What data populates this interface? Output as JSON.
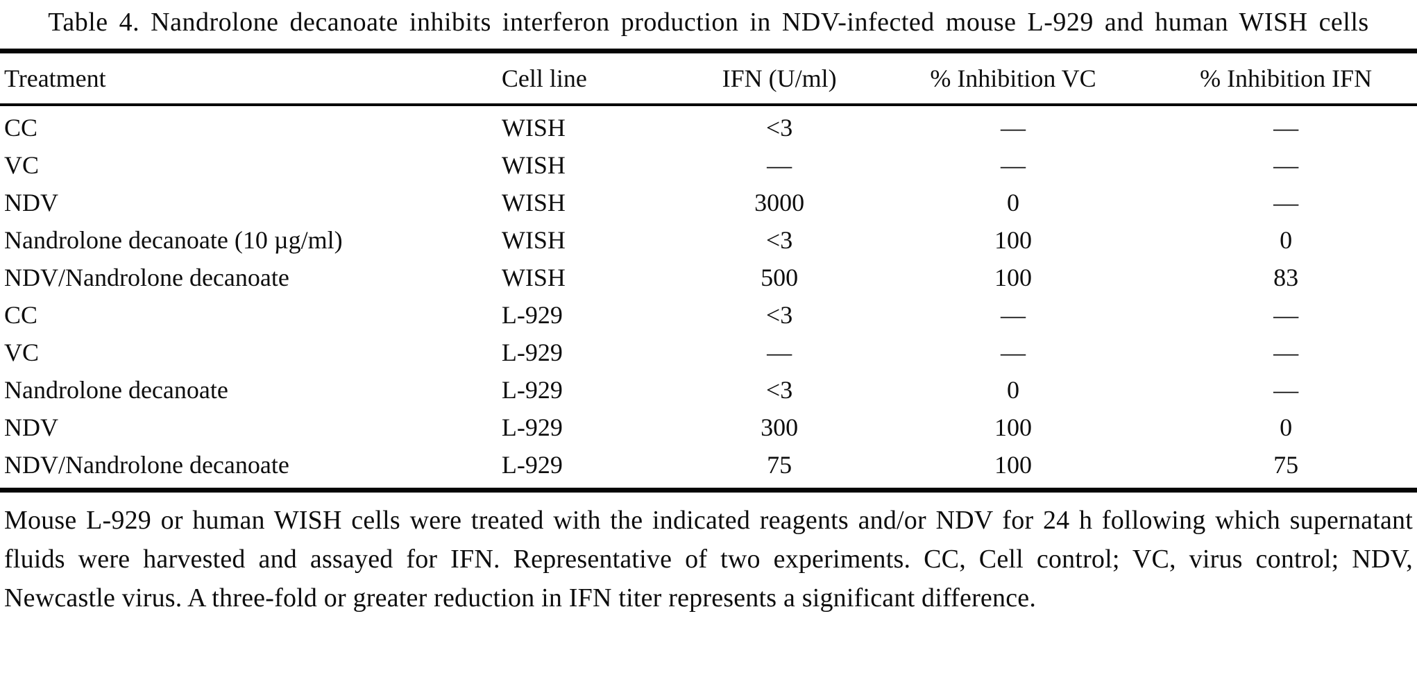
{
  "title": "Table 4. Nandrolone decanoate inhibits interferon production in NDV-infected mouse L-929 and human WISH cells",
  "table": {
    "columns": [
      "Treatment",
      "Cell line",
      "IFN (U/ml)",
      "% Inhibition VC",
      "% Inhibition IFN"
    ],
    "rows": [
      [
        "CC",
        "WISH",
        "<3",
        "—",
        "—"
      ],
      [
        "VC",
        "WISH",
        "—",
        "—",
        "—"
      ],
      [
        "NDV",
        "WISH",
        "3000",
        "0",
        "—"
      ],
      [
        "Nandrolone decanoate (10 µg/ml)",
        "WISH",
        "<3",
        "100",
        "0"
      ],
      [
        "NDV/Nandrolone decanoate",
        "WISH",
        "500",
        "100",
        "83"
      ],
      [
        "CC",
        "L-929",
        "<3",
        "—",
        "—"
      ],
      [
        "VC",
        "L-929",
        "—",
        "—",
        "—"
      ],
      [
        "Nandrolone decanoate",
        "L-929",
        "<3",
        "0",
        "—"
      ],
      [
        "NDV",
        "L-929",
        "300",
        "100",
        "0"
      ],
      [
        "NDV/Nandrolone decanoate",
        "L-929",
        "75",
        "100",
        "75"
      ]
    ]
  },
  "footnote": "Mouse L-929 or human WISH cells were treated with the indicated reagents and/or NDV for 24 h following which supernatant fluids were harvested and assayed for IFN. Representative of two experiments. CC, Cell control; VC, virus control; NDV, Newcastle virus. A three-fold or greater reduction in IFN titer represents a significant difference.",
  "colors": {
    "background": "#ffffff",
    "text": "#0d0d0d",
    "rule": "#050505"
  }
}
